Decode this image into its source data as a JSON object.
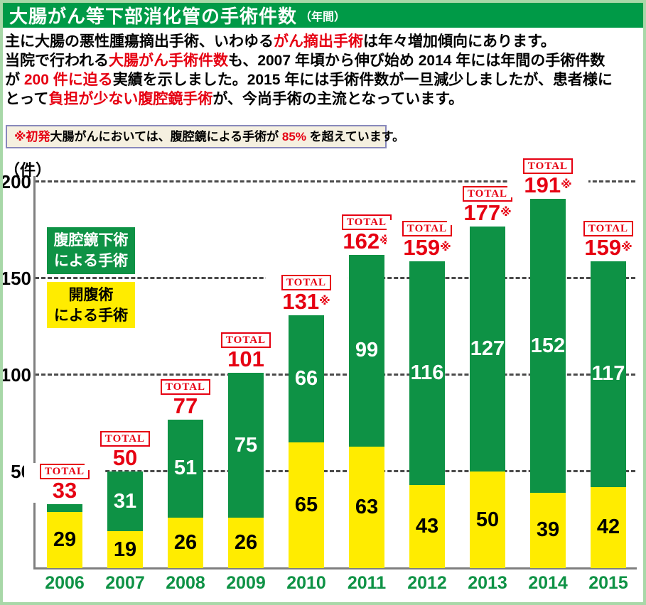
{
  "colors": {
    "header_green": "#009a47",
    "bar_green": "#0e9245",
    "bar_yellow": "#ffec00",
    "accent_red": "#e60012",
    "year_label_green": "#0e9245",
    "axis_gray": "#7f7f7f",
    "grid_gray": "#4a4a4a",
    "frame_green": "#a8d8a8",
    "note_bg": "#f5f0e0",
    "note_border": "#8888bb",
    "text_black": "#000000",
    "white": "#ffffff"
  },
  "header": {
    "title": "大腸がん等下部消化管の手術件数",
    "title_suffix": "（年間）"
  },
  "intro": {
    "lines": [
      {
        "segments": [
          {
            "text": "主に大腸の悪性腫瘍摘出手術、いわゆる"
          },
          {
            "text": "がん摘出手術",
            "red": true
          },
          {
            "text": "は年々増加傾向にあります。"
          }
        ]
      },
      {
        "segments": [
          {
            "text": "当院で行われる"
          },
          {
            "text": "大腸がん手術件数",
            "red": true
          },
          {
            "text": "も、2007 年頃から伸び始め 2014 年には年間の手術件数"
          }
        ]
      },
      {
        "segments": [
          {
            "text": "が "
          },
          {
            "text": "200 件に迫る",
            "red": true
          },
          {
            "text": "実績を示しました。2015 年には手術件数が一旦減少しましたが、患者様に"
          }
        ]
      },
      {
        "segments": [
          {
            "text": "とって"
          },
          {
            "text": "負担が少ない腹腔鏡手術",
            "red": true
          },
          {
            "text": "が、今尚手術の主流となっています。"
          }
        ]
      }
    ]
  },
  "note": {
    "segments": [
      {
        "text": "※初発",
        "red": true
      },
      {
        "text": "大腸がんにおいては、腹腔鏡による手術が "
      },
      {
        "text": "85%",
        "red": true
      },
      {
        "text": " を超えています。"
      }
    ]
  },
  "chart_data": {
    "type": "bar",
    "stacked": true,
    "title": "大腸がん等下部消化管の手術件数（年間）",
    "unit_label": "（件）",
    "categories": [
      "2006",
      "2007",
      "2008",
      "2009",
      "2010",
      "2011",
      "2012",
      "2013",
      "2014",
      "2015"
    ],
    "series": [
      {
        "name": "開腹術による手術",
        "color_key": "bar_yellow",
        "values": [
          29,
          19,
          26,
          26,
          65,
          63,
          43,
          50,
          39,
          42
        ],
        "labels": [
          "29",
          "19",
          "26",
          "26",
          "65",
          "63",
          "43",
          "50",
          "39",
          "42"
        ],
        "label_color": "#000000"
      },
      {
        "name": "腹腔鏡下術による手術",
        "color_key": "bar_green",
        "values": [
          4,
          31,
          51,
          75,
          66,
          99,
          116,
          127,
          152,
          117
        ],
        "labels": [
          null,
          "31",
          "51",
          "75",
          "66",
          "99",
          "116",
          "127",
          "152",
          "117"
        ],
        "label_color": "#ffffff"
      }
    ],
    "totals": {
      "label": "TOTAL",
      "values": [
        33,
        50,
        77,
        101,
        131,
        162,
        159,
        177,
        191,
        159
      ],
      "asterisk_mark": "※",
      "asterisk": [
        false,
        false,
        false,
        false,
        true,
        true,
        true,
        true,
        true,
        true
      ]
    },
    "y_ticks": [
      200,
      150,
      100,
      50
    ],
    "ylim": [
      0,
      200
    ],
    "grid": "dashed-horizontal",
    "legend_position": "upper-left-inside",
    "legend": [
      {
        "line1": "腹腔鏡下術",
        "line2": "による手術",
        "color_key": "bar_green",
        "text_color": "#ffffff"
      },
      {
        "line1": "開腹術",
        "line2": "による手術",
        "color_key": "bar_yellow",
        "text_color": "#000000"
      }
    ]
  }
}
